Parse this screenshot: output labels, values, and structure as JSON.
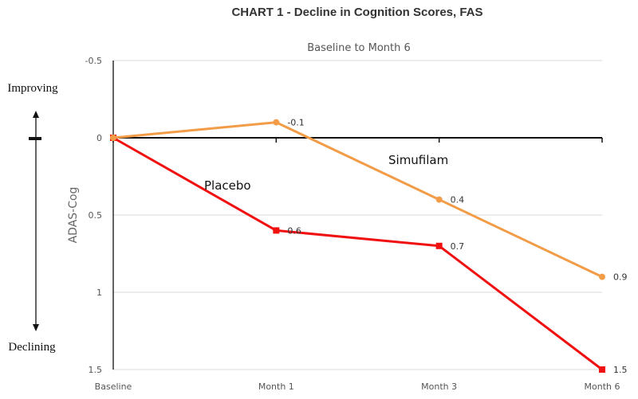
{
  "chart_data": {
    "type": "line",
    "title": "CHART 1 - Decline in Cognition Scores, FAS",
    "subtitle": "Baseline to Month 6",
    "ylabel": "ADAS-Cog",
    "xlabel": "",
    "categories": [
      "Baseline",
      "Month 1",
      "Month 3",
      "Month 6"
    ],
    "ylim": [
      -0.5,
      1.5
    ],
    "y_inverted": true,
    "yticks": [
      "-0.5",
      "0",
      "0.5",
      "1",
      "1.5"
    ],
    "grid": true,
    "series": [
      {
        "name": "Simufilam",
        "values": [
          0,
          -0.1,
          0.4,
          0.9
        ],
        "labels": [
          "",
          "-0.1",
          "0.4",
          "0.9"
        ],
        "color": "#F39C48",
        "marker": "circle"
      },
      {
        "name": "Placebo",
        "values": [
          0,
          0.6,
          0.7,
          1.5
        ],
        "labels": [
          "",
          "0.6",
          "0.7",
          "1.5"
        ],
        "color": "#F01010",
        "marker": "square"
      }
    ],
    "annotations": {
      "improving": "Improving",
      "declining": "Declining"
    }
  }
}
